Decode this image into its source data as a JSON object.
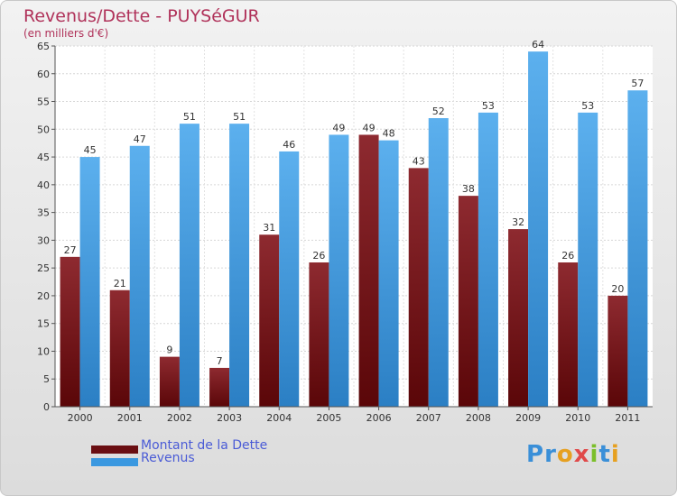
{
  "title": "Revenus/Dette - PUYSéGUR",
  "subtitle": "(en milliers d'€)",
  "logo_letters": [
    {
      "ch": "P",
      "color": "#3a8fd8"
    },
    {
      "ch": "r",
      "color": "#3a8fd8"
    },
    {
      "ch": "o",
      "color": "#e6a020"
    },
    {
      "ch": "x",
      "color": "#e04a4a"
    },
    {
      "ch": "i",
      "color": "#7bbf2a"
    },
    {
      "ch": "t",
      "color": "#3a8fd8"
    },
    {
      "ch": "i",
      "color": "#e6a020"
    }
  ],
  "chart_data": {
    "type": "bar",
    "title": "Revenus/Dette - PUYSéGUR",
    "ylabel": "(en milliers d'€)",
    "xlabel": "",
    "ylim": [
      0,
      65
    ],
    "yticks": [
      0,
      5,
      10,
      15,
      20,
      25,
      30,
      35,
      40,
      45,
      50,
      55,
      60,
      65
    ],
    "grid": true,
    "legend": "bottom-left",
    "categories": [
      "2000",
      "2001",
      "2002",
      "2003",
      "2004",
      "2005",
      "2006",
      "2007",
      "2008",
      "2009",
      "2010",
      "2011"
    ],
    "series": [
      {
        "name": "Montant de la Dette",
        "color": "#7a1418",
        "values": [
          27,
          21,
          9,
          7,
          31,
          26,
          49,
          43,
          38,
          32,
          26,
          20
        ]
      },
      {
        "name": "Revenus",
        "color": "#3a98e0",
        "values": [
          45,
          47,
          51,
          51,
          46,
          49,
          48,
          52,
          53,
          64,
          53,
          57
        ]
      }
    ]
  }
}
